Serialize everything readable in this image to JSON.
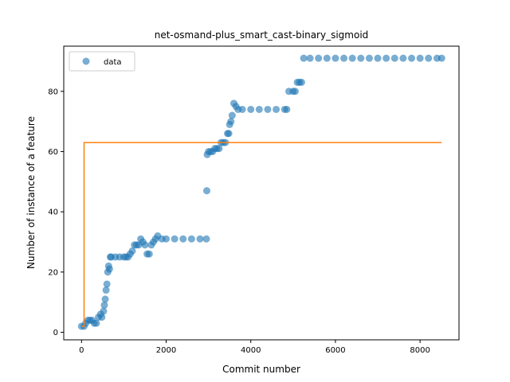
{
  "chart_data": {
    "type": "scatter",
    "title": "net-osmand-plus_smart_cast-binary_sigmoid",
    "xlabel": "Commit number",
    "ylabel": "Number of instance of a feature",
    "xlim": [
      -420,
      8920
    ],
    "ylim": [
      -2.5,
      95
    ],
    "xticks": [
      0,
      2000,
      4000,
      6000,
      8000
    ],
    "xtick_labels": [
      "0",
      "2000",
      "4000",
      "6000",
      "8000"
    ],
    "yticks": [
      0,
      20,
      40,
      60,
      80
    ],
    "ytick_labels": [
      "0",
      "20",
      "40",
      "60",
      "80"
    ],
    "grid": false,
    "legend": {
      "placement": "top-left",
      "entries": [
        "data"
      ]
    },
    "colors": {
      "data": "#1f77b4",
      "fit": "#ff7f0e",
      "axes": "#000000"
    },
    "series": [
      {
        "name": "data",
        "kind": "scatter",
        "points": [
          [
            0,
            2
          ],
          [
            60,
            2
          ],
          [
            100,
            3
          ],
          [
            150,
            4
          ],
          [
            200,
            4
          ],
          [
            250,
            4
          ],
          [
            300,
            3
          ],
          [
            350,
            3
          ],
          [
            400,
            5
          ],
          [
            450,
            6
          ],
          [
            480,
            5
          ],
          [
            520,
            7
          ],
          [
            540,
            9
          ],
          [
            560,
            11
          ],
          [
            580,
            14
          ],
          [
            600,
            16
          ],
          [
            620,
            20
          ],
          [
            640,
            22
          ],
          [
            660,
            21
          ],
          [
            680,
            25
          ],
          [
            700,
            25
          ],
          [
            800,
            25
          ],
          [
            900,
            25
          ],
          [
            1000,
            25
          ],
          [
            1050,
            25
          ],
          [
            1100,
            25
          ],
          [
            1150,
            26
          ],
          [
            1200,
            27
          ],
          [
            1250,
            29
          ],
          [
            1300,
            29
          ],
          [
            1350,
            29
          ],
          [
            1400,
            31
          ],
          [
            1450,
            30
          ],
          [
            1500,
            29
          ],
          [
            1550,
            26
          ],
          [
            1600,
            26
          ],
          [
            1650,
            29
          ],
          [
            1700,
            30
          ],
          [
            1750,
            31
          ],
          [
            1800,
            32
          ],
          [
            1900,
            31
          ],
          [
            2000,
            31
          ],
          [
            2200,
            31
          ],
          [
            2400,
            31
          ],
          [
            2600,
            31
          ],
          [
            2800,
            31
          ],
          [
            2950,
            31
          ],
          [
            2960,
            47
          ],
          [
            2970,
            59
          ],
          [
            3000,
            60
          ],
          [
            3050,
            60
          ],
          [
            3100,
            60
          ],
          [
            3150,
            61
          ],
          [
            3200,
            61
          ],
          [
            3250,
            61
          ],
          [
            3300,
            63
          ],
          [
            3350,
            63
          ],
          [
            3400,
            63
          ],
          [
            3450,
            66
          ],
          [
            3480,
            66
          ],
          [
            3500,
            69
          ],
          [
            3530,
            70
          ],
          [
            3560,
            72
          ],
          [
            3600,
            76
          ],
          [
            3650,
            75
          ],
          [
            3700,
            74
          ],
          [
            3800,
            74
          ],
          [
            4000,
            74
          ],
          [
            4200,
            74
          ],
          [
            4400,
            74
          ],
          [
            4600,
            74
          ],
          [
            4800,
            74
          ],
          [
            4850,
            74
          ],
          [
            4900,
            80
          ],
          [
            5000,
            80
          ],
          [
            5050,
            80
          ],
          [
            5100,
            83
          ],
          [
            5150,
            83
          ],
          [
            5200,
            83
          ],
          [
            5250,
            91
          ],
          [
            5400,
            91
          ],
          [
            5600,
            91
          ],
          [
            5800,
            91
          ],
          [
            6000,
            91
          ],
          [
            6200,
            91
          ],
          [
            6400,
            91
          ],
          [
            6600,
            91
          ],
          [
            6800,
            91
          ],
          [
            7000,
            91
          ],
          [
            7200,
            91
          ],
          [
            7400,
            91
          ],
          [
            7600,
            91
          ],
          [
            7800,
            91
          ],
          [
            8000,
            91
          ],
          [
            8200,
            91
          ],
          [
            8400,
            91
          ],
          [
            8510,
            91
          ]
        ]
      },
      {
        "kind": "line",
        "points": [
          [
            0,
            2
          ],
          [
            60,
            2
          ],
          [
            60,
            63
          ],
          [
            8510,
            63
          ]
        ]
      }
    ]
  }
}
